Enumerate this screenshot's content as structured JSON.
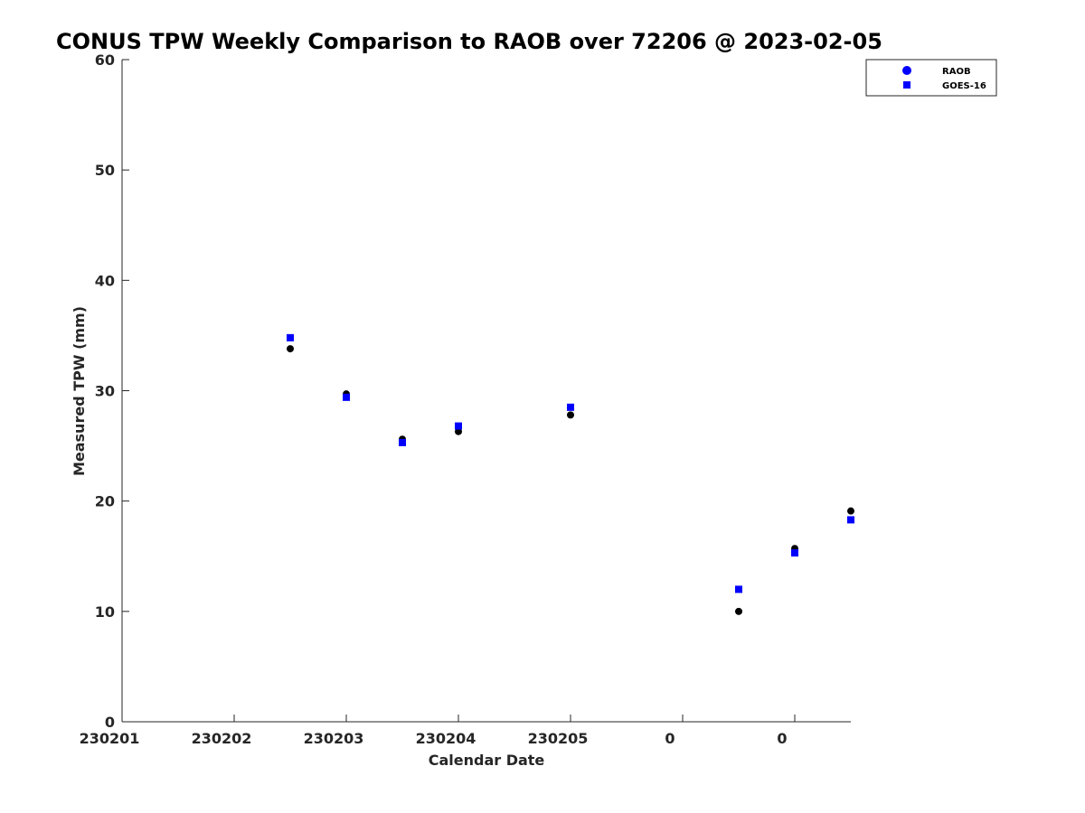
{
  "chart_data": {
    "type": "scatter",
    "title": "CONUS TPW Weekly Comparison to RAOB over 72206 @ 2023-02-05",
    "xlabel": "Calendar Date",
    "ylabel": "Measured TPW (mm)",
    "xlim": [
      0,
      6.5
    ],
    "ylim": [
      0,
      60
    ],
    "x_ticks": [
      {
        "value": 0,
        "label": "230201"
      },
      {
        "value": 1,
        "label": "230202"
      },
      {
        "value": 2,
        "label": "230203"
      },
      {
        "value": 3,
        "label": "230204"
      },
      {
        "value": 4,
        "label": "230205"
      },
      {
        "value": 5,
        "label": "0"
      },
      {
        "value": 6,
        "label": "0"
      }
    ],
    "y_ticks": [
      0,
      10,
      20,
      30,
      40,
      50,
      60
    ],
    "grid": false,
    "legend_position": "top-right",
    "series": [
      {
        "name": "RAOB",
        "marker": "circle",
        "color": "#000000",
        "legend_color": "#0000ff",
        "x": [
          1.5,
          2.0,
          2.5,
          3.0,
          4.0,
          5.5,
          6.0,
          6.5
        ],
        "y": [
          33.8,
          29.7,
          25.6,
          26.3,
          27.8,
          10.0,
          15.7,
          19.1
        ]
      },
      {
        "name": "GOES-16",
        "marker": "square",
        "color": "#0000ff",
        "x": [
          1.5,
          2.0,
          2.5,
          3.0,
          4.0,
          5.5,
          6.0,
          6.5
        ],
        "y": [
          34.8,
          29.4,
          25.3,
          26.8,
          28.5,
          12.0,
          15.3,
          18.3
        ]
      }
    ]
  }
}
